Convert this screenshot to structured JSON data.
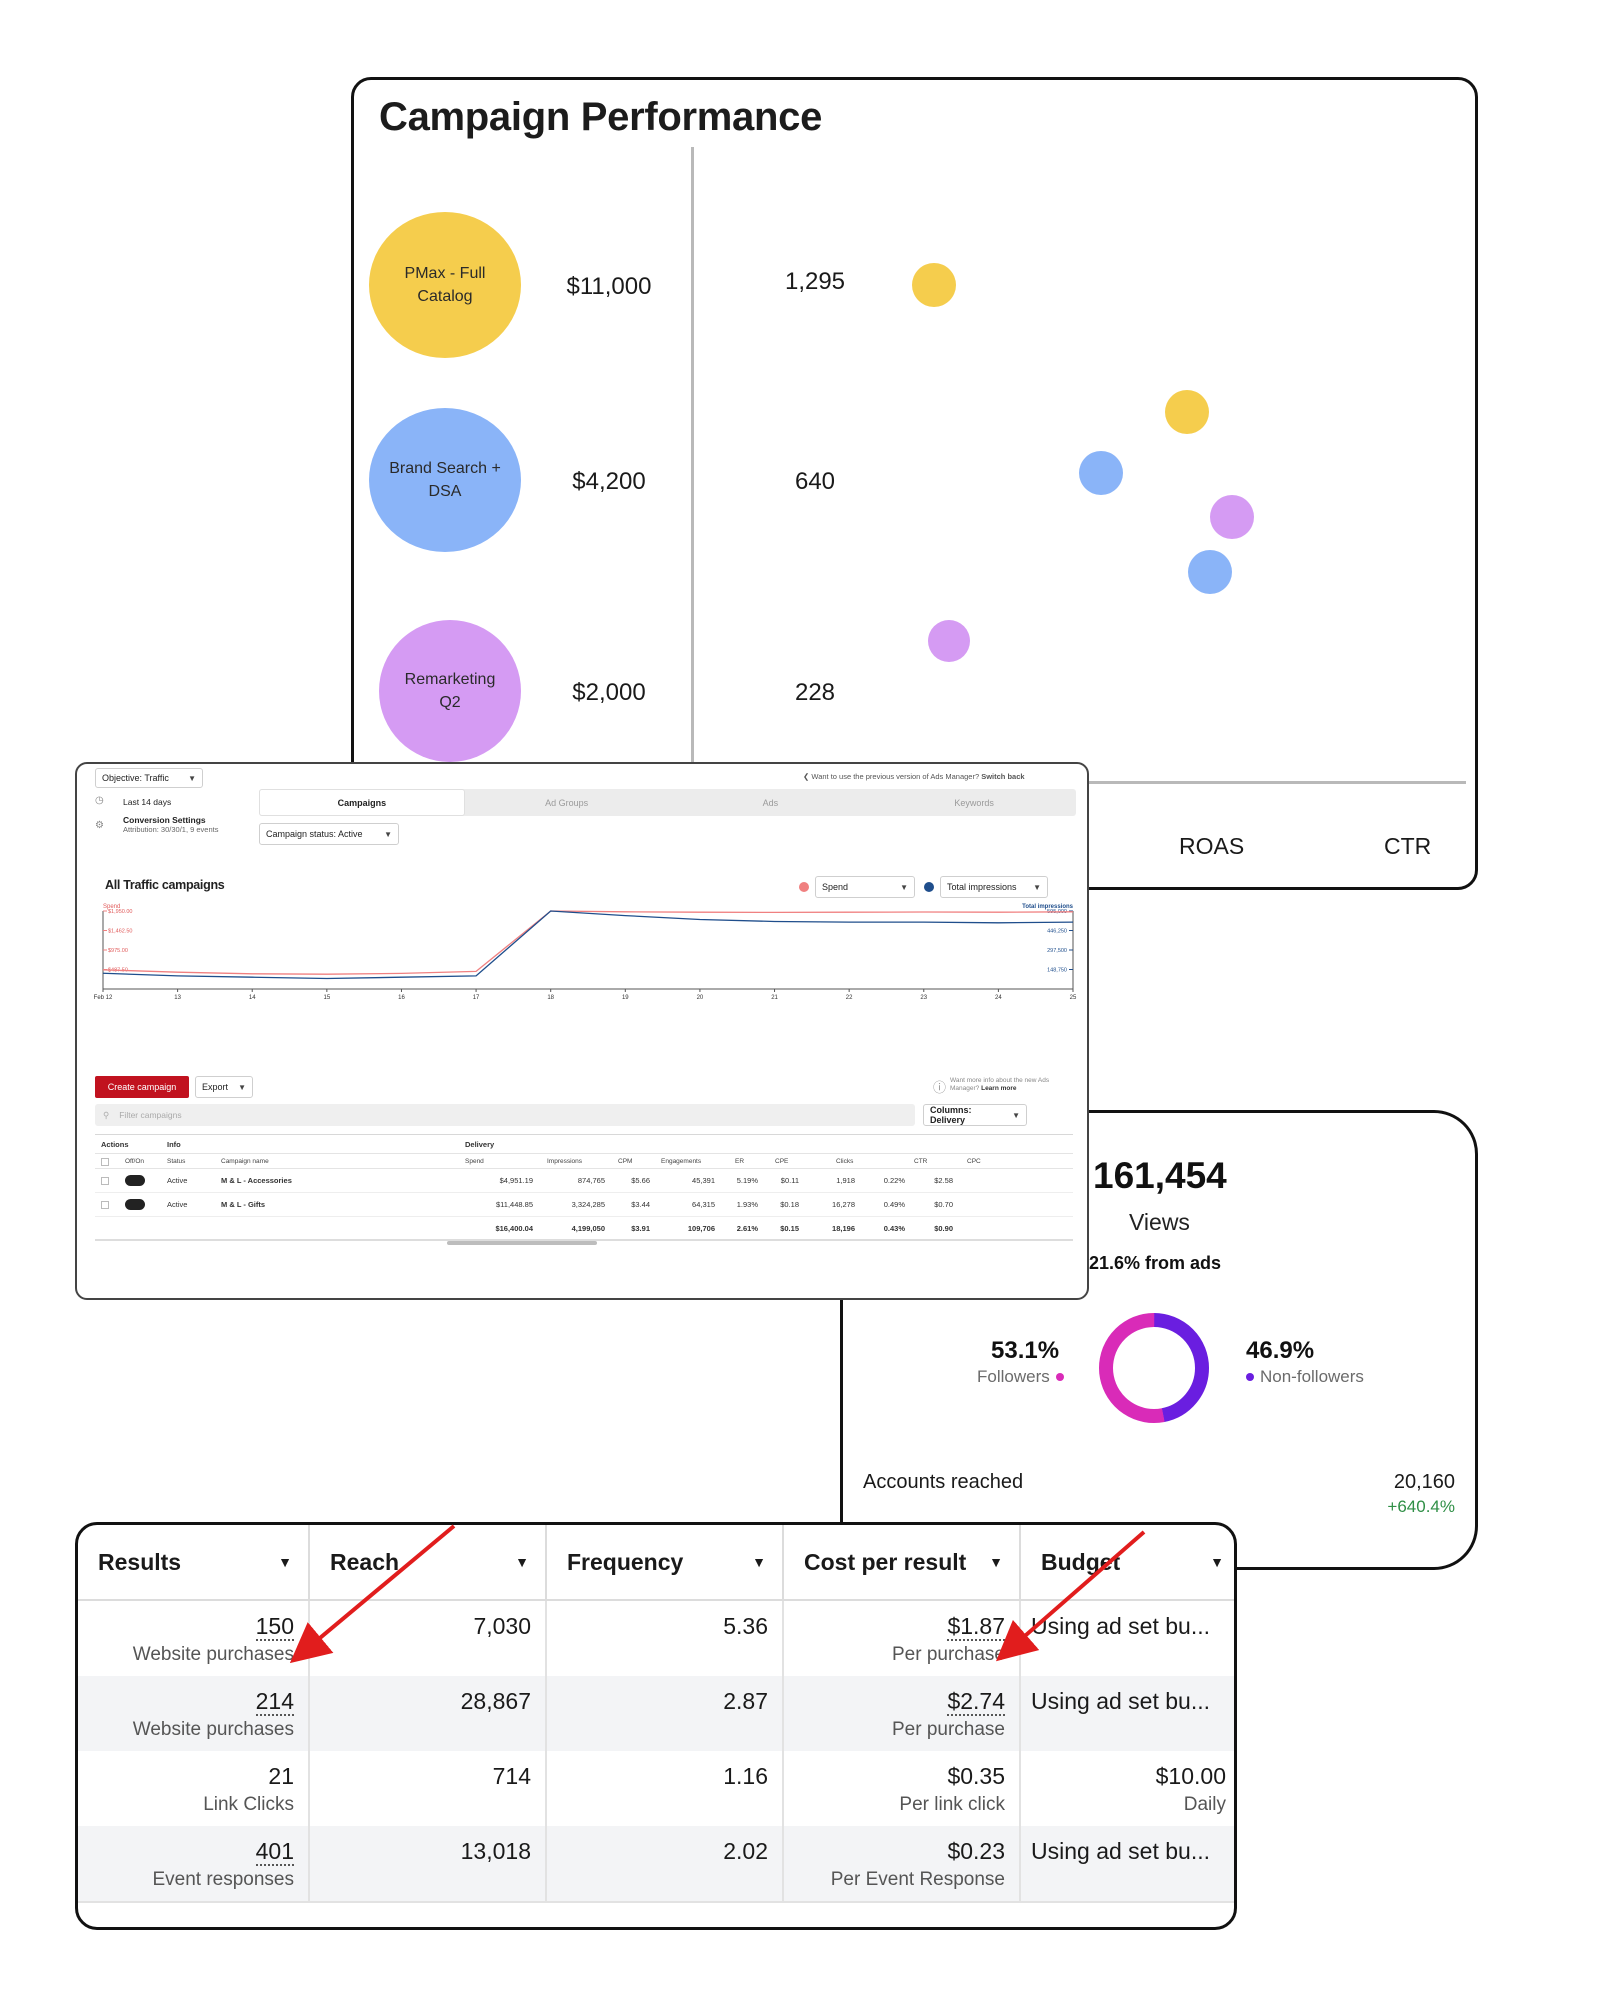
{
  "performance": {
    "title": "Campaign Performance",
    "campaigns": [
      {
        "name": "PMax - Full Catalog",
        "spend": "$11,000",
        "count": "1,295",
        "color": "#f5cd4d"
      },
      {
        "name": "Brand Search + DSA",
        "spend": "$4,200",
        "count": "640",
        "color": "#8ab4f8"
      },
      {
        "name": "Remarketing Q2",
        "spend": "$2,000",
        "count": "228",
        "color": "#d59bf3"
      }
    ],
    "axis_labels": [
      "ROAS",
      "CTR"
    ]
  },
  "views": {
    "total": "161,454",
    "label": "Views",
    "from_ads": "21.6% from ads",
    "followers_pct": "53.1%",
    "followers_label": "Followers",
    "followers_share": 0.531,
    "followers_color": "#d92bb8",
    "nonfollowers_pct": "46.9%",
    "nonfollowers_label": "Non-followers",
    "nonfollowers_color": "#6a1ee0",
    "accounts_label": "Accounts reached",
    "accounts_value": "20,160",
    "accounts_change": "+640.4%"
  },
  "ads_manager": {
    "objective": "Objective: Traffic",
    "date_range": "Last 14 days",
    "conversion_title": "Conversion Settings",
    "conversion_sub": "Attribution: 30/30/1, 9 events",
    "previous_version": "Want to use the previous version of Ads Manager?",
    "switch_back": "Switch back",
    "tabs": [
      "Campaigns",
      "Ad Groups",
      "Ads",
      "Keywords"
    ],
    "status_filter": "Campaign status: Active",
    "chart_title": "All Traffic campaigns",
    "metric_left": "Spend",
    "metric_right": "Total impressions",
    "create_btn": "Create campaign",
    "export_btn": "Export",
    "new_info": "Want more info about the new Ads Manager?",
    "learn_more": "Learn more",
    "filter_placeholder": "Filter campaigns",
    "columns_btn": "Columns: Delivery",
    "group_headers": [
      "Actions",
      "Info",
      "Delivery"
    ],
    "col_headers": [
      "Off/On",
      "Status",
      "Campaign name",
      "Spend",
      "Impressions",
      "CPM",
      "Engagements",
      "ER",
      "CPE",
      "Clicks",
      "CTR",
      "CPC"
    ],
    "rows": [
      [
        "Active",
        "M & L - Accessories",
        "$4,951.19",
        "874,765",
        "$5.66",
        "45,391",
        "5.19%",
        "$0.11",
        "1,918",
        "0.22%",
        "$2.58"
      ],
      [
        "Active",
        "M & L - Gifts",
        "$11,448.85",
        "3,324,285",
        "$3.44",
        "64,315",
        "1.93%",
        "$0.18",
        "16,278",
        "0.49%",
        "$0.70"
      ]
    ],
    "totals": [
      "$16,400.04",
      "4,199,050",
      "$3.91",
      "109,706",
      "2.61%",
      "$0.15",
      "18,196",
      "0.43%",
      "$0.90"
    ]
  },
  "chart_data": {
    "type": "line",
    "title": "All Traffic campaigns",
    "x": [
      "Feb 12",
      "13",
      "14",
      "15",
      "16",
      "17",
      "18",
      "19",
      "20",
      "21",
      "22",
      "23",
      "24",
      "25"
    ],
    "series": [
      {
        "name": "Spend",
        "axis": "left",
        "color": "#f08080",
        "values": [
          480,
          420,
          380,
          370,
          390,
          440,
          1950,
          1930,
          1920,
          1915,
          1920,
          1925,
          1920,
          1930
        ]
      },
      {
        "name": "Total impressions",
        "axis": "right",
        "color": "#1f4e8c",
        "values": [
          120000,
          100000,
          90000,
          80000,
          90000,
          100000,
          595000,
          560000,
          530000,
          515000,
          510000,
          510000,
          505000,
          510000
        ]
      }
    ],
    "y_left_label": "Spend",
    "y_left_ticks": [
      "$1,950.00",
      "$1,462.50",
      "$975.00",
      "$487.50"
    ],
    "y_left_lim": [
      0,
      1950
    ],
    "y_right_label": "Total impressions",
    "y_right_ticks": [
      "595,000",
      "446,250",
      "297,500",
      "148,750"
    ],
    "y_right_lim": [
      0,
      595000
    ]
  },
  "results": {
    "headers": [
      "Results",
      "Reach",
      "Frequency",
      "Cost per result",
      "Budget"
    ],
    "rows": [
      {
        "results": "150",
        "results_sub": "Website purchases",
        "reach": "7,030",
        "frequency": "5.36",
        "cost": "$1.87",
        "cost_sub": "Per purchase",
        "budget": "Using ad set bu...",
        "budget_sub": ""
      },
      {
        "results": "214",
        "results_sub": "Website purchases",
        "reach": "28,867",
        "frequency": "2.87",
        "cost": "$2.74",
        "cost_sub": "Per purchase",
        "budget": "Using ad set bu...",
        "budget_sub": ""
      },
      {
        "results": "21",
        "results_sub": "Link Clicks",
        "reach": "714",
        "frequency": "1.16",
        "cost": "$0.35",
        "cost_sub": "Per link click",
        "budget": "$10.00",
        "budget_sub": "Daily"
      },
      {
        "results": "401",
        "results_sub": "Event responses",
        "reach": "13,018",
        "frequency": "2.02",
        "cost": "$0.23",
        "cost_sub": "Per Event Response",
        "budget": "Using ad set bu...",
        "budget_sub": ""
      }
    ]
  }
}
